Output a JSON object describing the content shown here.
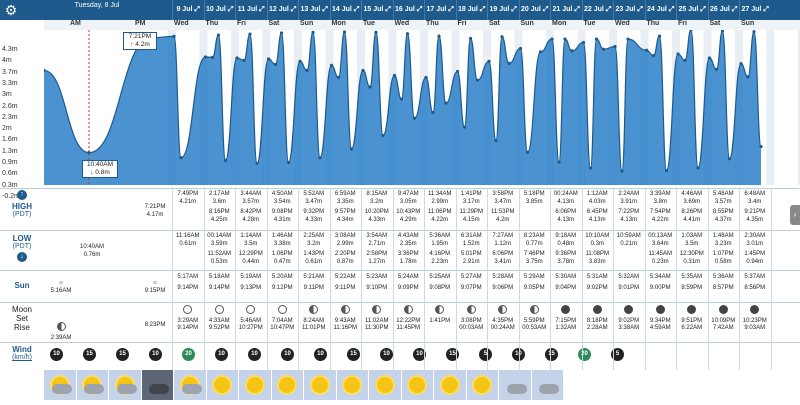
{
  "colors": {
    "header": "#1e5a8c",
    "wave": "#2a7fc8",
    "high_marker": "#c0392b"
  },
  "first_day": {
    "label": "Tuesday, 8 Jul",
    "am": "AM",
    "pm": "PM"
  },
  "days": [
    {
      "label": "9 Jul",
      "wd": ""
    },
    {
      "label": "10 Jul",
      "wd": "Thu"
    },
    {
      "label": "11 Jul",
      "wd": "Fri"
    },
    {
      "label": "12 Jul",
      "wd": "Sat"
    },
    {
      "label": "13 Jul",
      "wd": "Sun"
    },
    {
      "label": "14 Jul",
      "wd": "Mon"
    },
    {
      "label": "15 Jul",
      "wd": "Tue"
    },
    {
      "label": "16 Jul",
      "wd": "Wed"
    },
    {
      "label": "17 Jul",
      "wd": "Thu"
    },
    {
      "label": "18 Jul",
      "wd": "Fri"
    },
    {
      "label": "19 Jul",
      "wd": "Sat"
    },
    {
      "label": "20 Jul",
      "wd": "Sun"
    },
    {
      "label": "21 Jul",
      "wd": "Mon"
    },
    {
      "label": "22 Jul",
      "wd": "Tue"
    },
    {
      "label": "23 Jul",
      "wd": "Wed"
    },
    {
      "label": "24 Jul",
      "wd": "Thu"
    },
    {
      "label": "25 Jul",
      "wd": "Fri"
    },
    {
      "label": "26 Jul",
      "wd": "Sat"
    },
    {
      "label": "27 Jul",
      "wd": "Sun"
    }
  ],
  "wed_label": "Wed",
  "y_ticks": [
    "4.3m",
    "4m",
    "3.7m",
    "3.3m",
    "3m",
    "2.6m",
    "2.3m",
    "2m",
    "1.6m",
    "1.3m",
    "0.9m",
    "0.6m",
    "0.3m",
    "-0.2m"
  ],
  "popups": {
    "high": {
      "time": "7:21PM",
      "value": "↑ 4.2m"
    },
    "low": {
      "time": "10:40AM",
      "value": "↓ 0.8m"
    }
  },
  "labels": {
    "high": "HIGH",
    "high_tz": "(PDT)",
    "low": "LOW",
    "low_tz": "(PDT)",
    "sun": "Sun",
    "moon": "Moon",
    "set": "Set",
    "rise": "Rise",
    "wind": "Wind",
    "wind_unit": "(km/h)"
  },
  "first_high": [
    "7:21PM",
    "4.17m"
  ],
  "first_low": [
    "10:40AM",
    "0.76m"
  ],
  "first_sun": [
    "5:16AM",
    "9:15PM"
  ],
  "first_moon": [
    "2:39AM",
    "8:23PM"
  ],
  "highs": [
    [
      "7:49PM",
      "4.21m",
      "",
      ""
    ],
    [
      "2:17AM",
      "3.6m",
      "8:16PM",
      "4.25m"
    ],
    [
      "3:44AM",
      "3.57m",
      "8:42PM",
      "4.28m"
    ],
    [
      "4:50AM",
      "3.54m",
      "9:08PM",
      "4.31m"
    ],
    [
      "5:52AM",
      "3.47m",
      "9:32PM",
      "4.33m"
    ],
    [
      "6:59AM",
      "3.35m",
      "9:57PM",
      "4.34m"
    ],
    [
      "8:15AM",
      "3.2m",
      "10:20PM",
      "4.33m"
    ],
    [
      "9:47AM",
      "3.05m",
      "10:43PM",
      "4.29m"
    ],
    [
      "11:34AM",
      "2.99m",
      "11:06PM",
      "4.22m"
    ],
    [
      "1:41PM",
      "3.17m",
      "11:29PM",
      "4.15m"
    ],
    [
      "3:58PM",
      "3.47m",
      "11:53PM",
      "4.2m"
    ],
    [
      "5:18PM",
      "3.85m",
      "",
      ""
    ],
    [
      "00:24AM",
      "4.13m",
      "6:06PM",
      "4.13m"
    ],
    [
      "1:12AM",
      "4.03m",
      "6:45PM",
      "4.13m"
    ],
    [
      "2:24AM",
      "3.91m",
      "7:22PM",
      "4.13m"
    ],
    [
      "3:39AM",
      "3.8m",
      "7:54PM",
      "4.22m"
    ],
    [
      "4:46AM",
      "3.69m",
      "8:26PM",
      "4.41m"
    ],
    [
      "5:48AM",
      "3.57m",
      "8:55PM",
      "4.37m"
    ],
    [
      "6:48AM",
      "3.4m",
      "9:21PM",
      "4.35m"
    ]
  ],
  "lows": [
    [
      "11:16AM",
      "0.61m",
      "",
      ""
    ],
    [
      "00:14AM",
      "3.59m",
      "11:52AM",
      "0.53m"
    ],
    [
      "1:14AM",
      "3.5m",
      "12:29PM",
      "0.44m"
    ],
    [
      "1:46AM",
      "3.38m",
      "1:06PM",
      "0.47m"
    ],
    [
      "2:25AM",
      "3.2m",
      "1:43PM",
      "0.61m"
    ],
    [
      "3:08AM",
      "2.99m",
      "2:20PM",
      "0.87m"
    ],
    [
      "3:54AM",
      "2.71m",
      "2:58PM",
      "1.27m"
    ],
    [
      "4:43AM",
      "2.35m",
      "3:36PM",
      "1.78m"
    ],
    [
      "5:36AM",
      "1.95m",
      "4:16PM",
      "2.23m"
    ],
    [
      "6:31AM",
      "1.52m",
      "5:01PM",
      "2.91m"
    ],
    [
      "7:27AM",
      "1.12m",
      "6:06PM",
      "3.41m"
    ],
    [
      "8:23AM",
      "0.77m",
      "7:46PM",
      "3.75m"
    ],
    [
      "9:18AM",
      "0.48m",
      "9:36PM",
      "3.78m"
    ],
    [
      "10:10AM",
      "0.3m",
      "11:08PM",
      "3.83m"
    ],
    [
      "10:59AM",
      "0.21m",
      "",
      ""
    ],
    [
      "00:13AM",
      "3.64m",
      "11:45AM",
      "0.23m"
    ],
    [
      "1:03AM",
      "3.5m",
      "12:30PM",
      "0.31m"
    ],
    [
      "1:48AM",
      "3.23m",
      "1:07PM",
      "0.58m"
    ],
    [
      "2:30AM",
      "3.01m",
      "1:45PM",
      "0.94m"
    ]
  ],
  "sun": [
    [
      "5:17AM",
      "9:14PM"
    ],
    [
      "5:18AM",
      "9:14PM"
    ],
    [
      "5:19AM",
      "9:13PM"
    ],
    [
      "5:20AM",
      "9:12PM"
    ],
    [
      "5:21AM",
      "9:11PM"
    ],
    [
      "5:22AM",
      "9:11PM"
    ],
    [
      "5:23AM",
      "9:10PM"
    ],
    [
      "5:24AM",
      "9:09PM"
    ],
    [
      "5:25AM",
      "9:08PM"
    ],
    [
      "5:27AM",
      "9:07PM"
    ],
    [
      "5:28AM",
      "9:06PM"
    ],
    [
      "5:29AM",
      "9:05PM"
    ],
    [
      "5:30AM",
      "9:04PM"
    ],
    [
      "5:31AM",
      "9:02PM"
    ],
    [
      "5:32AM",
      "9:01PM"
    ],
    [
      "5:34AM",
      "9:00PM"
    ],
    [
      "5:35AM",
      "8:59PM"
    ],
    [
      "5:36AM",
      "8:57PM"
    ],
    [
      "5:37AM",
      "8:56PM"
    ]
  ],
  "moon": [
    [
      "3:29AM",
      "9:14PM"
    ],
    [
      "4:33AM",
      "9:52PM"
    ],
    [
      "5:46AM",
      "10:27PM"
    ],
    [
      "7:04AM",
      "10:47PM"
    ],
    [
      "8:24AM",
      "11:01PM"
    ],
    [
      "9:43AM",
      "11:16PM"
    ],
    [
      "11:02AM",
      "11:30PM"
    ],
    [
      "12:22PM",
      "11:45PM"
    ],
    [
      "1:41PM",
      ""
    ],
    [
      "3:08PM",
      "00:03AM"
    ],
    [
      "4:35PM",
      "00:24AM"
    ],
    [
      "5:59PM",
      "00:53AM"
    ],
    [
      "7:15PM",
      "1:32AM"
    ],
    [
      "8:18PM",
      "2:28AM"
    ],
    [
      "9:02PM",
      "3:38AM"
    ],
    [
      "9:34PM",
      "4:59AM"
    ],
    [
      "9:51PM",
      "6:22AM"
    ],
    [
      "10:09PM",
      "7:42AM"
    ],
    [
      "10:23PM",
      "9:03AM"
    ]
  ],
  "wind": [
    [
      "10",
      "15",
      "15",
      "10"
    ],
    [
      "20",
      "10",
      "10",
      "10"
    ],
    [
      "10",
      "15",
      "10",
      "10"
    ],
    [
      "15",
      "5",
      "10",
      "15"
    ],
    [
      "20",
      "5",
      "",
      ""
    ]
  ],
  "weather": [
    "partly-cloudy",
    "partly-cloudy",
    "partly-cloudy",
    "storm",
    "partly-cloudy",
    "sunny",
    "sunny",
    "sunny",
    "sunny",
    "sunny",
    "sunny",
    "sunny",
    "sunny",
    "sunny",
    "cloudy",
    "cloudy"
  ],
  "tides": [
    {
      "t": 0,
      "h": 3.2
    },
    {
      "t": 0.04,
      "h": 3.5
    },
    {
      "t": 0.12,
      "h": 2.2
    },
    {
      "t": 0.19,
      "h": 0.76
    },
    {
      "t": 0.33,
      "h": 4.17
    },
    {
      "t": 0.37,
      "h": 3.9
    },
    {
      "t": 0.4,
      "h": 3.6
    },
    {
      "t": 0.45,
      "h": 0.61
    },
    {
      "t": 0.5,
      "h": 4.21
    },
    {
      "t": 0.55,
      "h": 3.6
    },
    {
      "t": 0.58,
      "h": 3.59
    },
    {
      "t": 0.62,
      "h": 0.53
    },
    {
      "t": 0.66,
      "h": 4.25
    }
  ]
}
